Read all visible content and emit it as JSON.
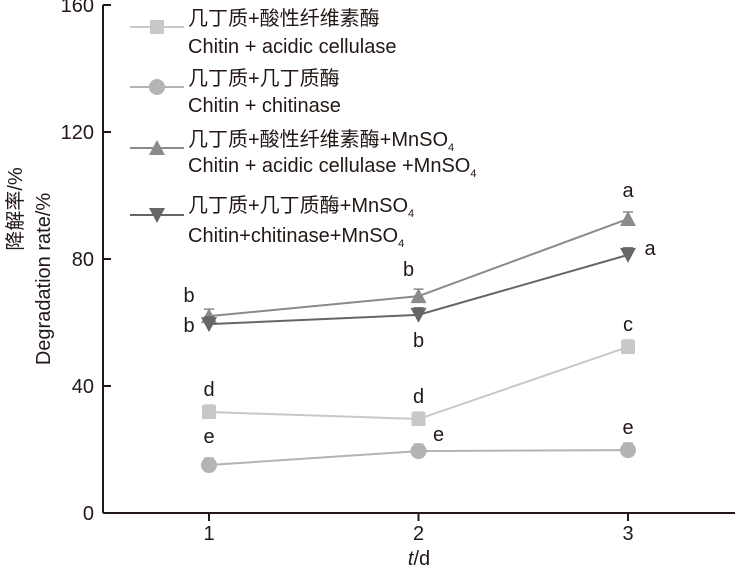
{
  "chart_data": {
    "type": "line",
    "title": "",
    "xlabel_italic": "t",
    "xlabel_rest": "/d",
    "ylabel_cn": "降解率/%",
    "ylabel_en": "Degradation rate/%",
    "x": [
      1,
      2,
      3
    ],
    "x_ticks": [
      "1",
      "2",
      "3"
    ],
    "xlim": [
      0.5,
      3.5
    ],
    "ylim": [
      0,
      160
    ],
    "y_ticks": [
      "0",
      "40",
      "80",
      "120",
      "160"
    ],
    "grid": false,
    "legend_position": "top-left",
    "series": [
      {
        "name_cn": "几丁质+酸性纤维素酶",
        "name_en": "Chitin + acidic cellulase",
        "name_sub": "",
        "marker": "square",
        "color": "#c8c8c8",
        "values": [
          31.8,
          29.6,
          52.3
        ],
        "letters": [
          "d",
          "d",
          "c"
        ]
      },
      {
        "name_cn": "几丁质+几丁质酶",
        "name_en": "Chitin + chitinase",
        "name_sub": "",
        "marker": "circle",
        "color": "#b4b4b4",
        "values": [
          15.1,
          19.5,
          19.8
        ],
        "letters": [
          "e",
          "e",
          "e"
        ]
      },
      {
        "name_cn": "几丁质+酸性纤维素酶+MnSO",
        "name_en": "Chitin + acidic cellulase +MnSO",
        "name_sub": "4",
        "marker": "triangle-up",
        "color": "#8a8a8a",
        "values": [
          62.0,
          68.3,
          92.6
        ],
        "letters": [
          "b",
          "b",
          "a"
        ]
      },
      {
        "name_cn": "几丁质+几丁质酶+MnSO",
        "name_en": "Chitin+chitinase+MnSO",
        "name_sub": "4",
        "marker": "triangle-down",
        "color": "#666666",
        "values": [
          59.5,
          62.4,
          81.3
        ],
        "letters": [
          "b",
          "b",
          "a"
        ]
      }
    ]
  }
}
